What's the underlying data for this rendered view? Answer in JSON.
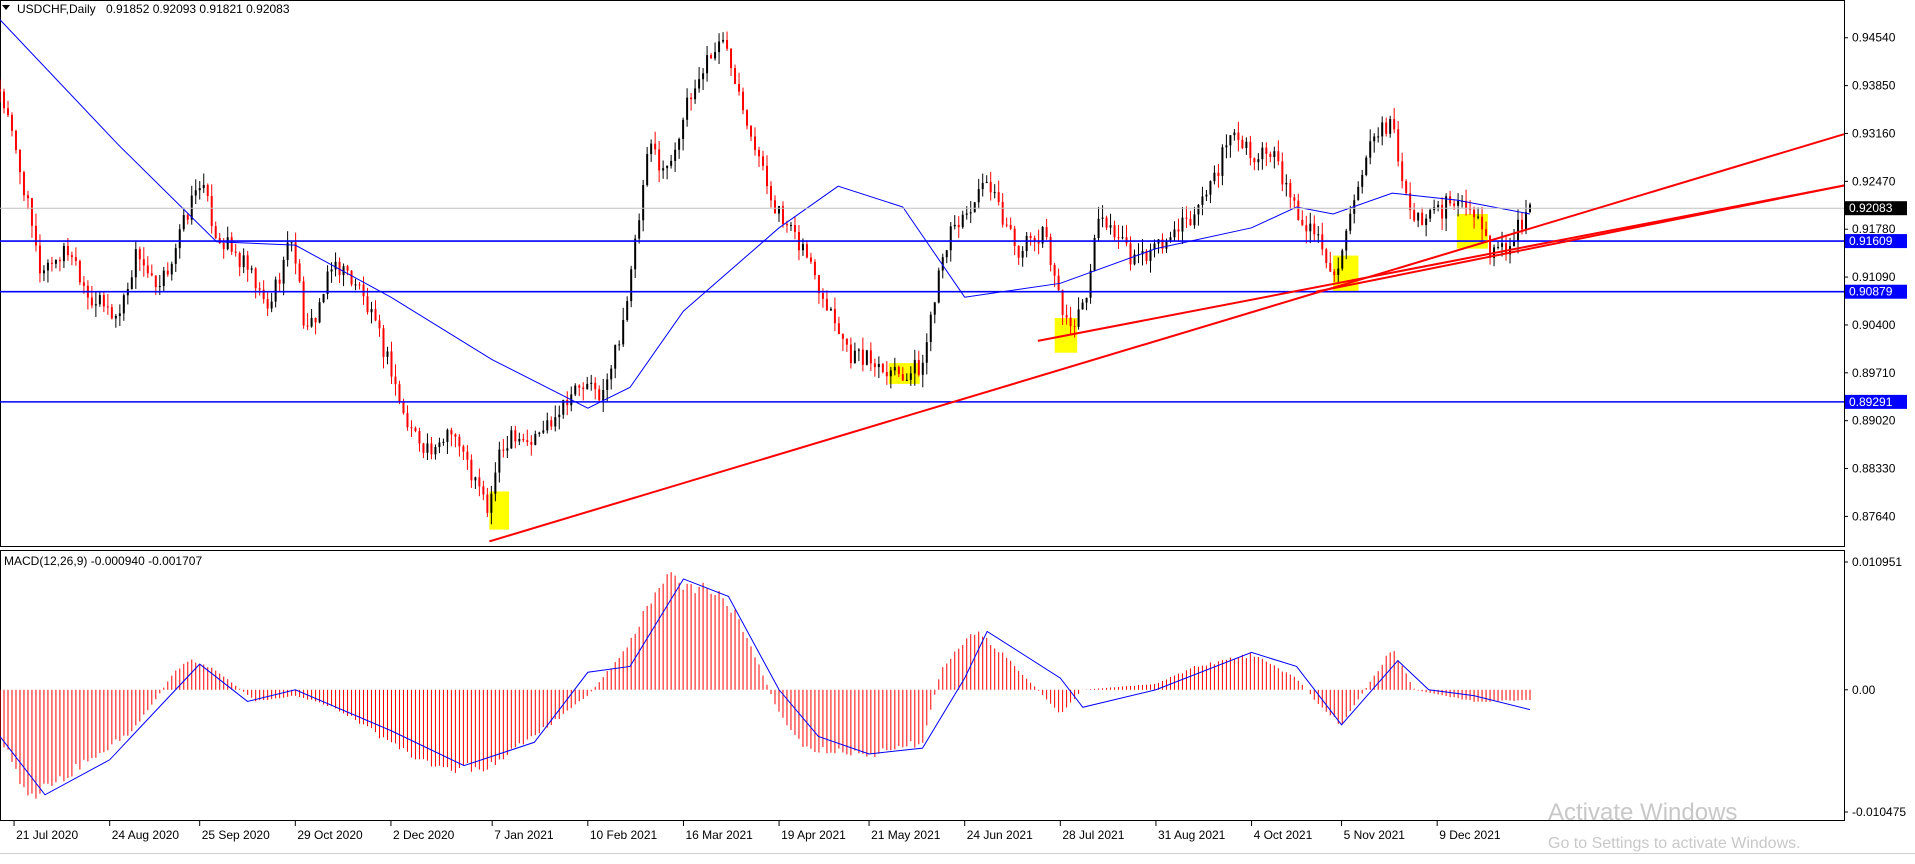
{
  "header": {
    "symbol": "USDCHF,Daily",
    "ohlc": "0.91852 0.92093 0.91821 0.92083"
  },
  "macd_header": {
    "label": "MACD(12,26,9) -0.000940 -0.001707"
  },
  "watermark": {
    "title": "Activate Windows",
    "subtitle": "Go to Settings to activate Windows."
  },
  "colors": {
    "bull": "#000000",
    "bear": "#ff0000",
    "ma": "#0000ff",
    "support": "#0000ff",
    "trend": "#ff0000",
    "highlight": "#ffff00",
    "price_tag": "#000000",
    "level_tag": "#0000ff"
  },
  "chart_data": [
    {
      "type": "candlestick",
      "title": "USDCHF,Daily",
      "current_price": 0.92083,
      "ylim": [
        0.873,
        0.9494
      ],
      "y_ticks": [
        "0.94540",
        "0.93850",
        "0.93160",
        "0.92470",
        "0.91780",
        "0.91090",
        "0.90400",
        "0.89710",
        "0.89020",
        "0.88330",
        "0.87640"
      ],
      "x_tick_labels": [
        "21 Jul 2020",
        "24 Aug 2020",
        "25 Sep 2020",
        "29 Oct 2020",
        "2 Dec 2020",
        "7 Jan 2021",
        "10 Feb 2021",
        "16 Mar 2021",
        "19 Apr 2021",
        "21 May 2021",
        "24 Jun 2021",
        "28 Jul 2021",
        "31 Aug 2021",
        "4 Oct 2021",
        "5 Nov 2021",
        "9 Dec 2021"
      ],
      "candle_count": 384,
      "price_path": [
        [
          "16 Jul 2020",
          0.938
        ],
        [
          "24 Jul 2020",
          0.925
        ],
        [
          "30 Jul 2020",
          0.912
        ],
        [
          "10 Aug 2020",
          0.915
        ],
        [
          "17 Aug 2020",
          0.908
        ],
        [
          "27 Aug 2020",
          0.905
        ],
        [
          "3 Sep 2020",
          0.915
        ],
        [
          "10 Sep 2020",
          0.908
        ],
        [
          "25 Sep 2020",
          0.925
        ],
        [
          "1 Oct 2020",
          0.917
        ],
        [
          "12 Oct 2020",
          0.912
        ],
        [
          "19 Oct 2020",
          0.906
        ],
        [
          "28 Oct 2020",
          0.917
        ],
        [
          "2 Nov 2020",
          0.902
        ],
        [
          "12 Nov 2020",
          0.913
        ],
        [
          "20 Nov 2020",
          0.91
        ],
        [
          "2 Dec 2020",
          0.898
        ],
        [
          "7 Dec 2020",
          0.89
        ],
        [
          "18 Dec 2020",
          0.885
        ],
        [
          "23 Dec 2020",
          0.89
        ],
        [
          "30 Dec 2020",
          0.883
        ],
        [
          "6 Jan 2021",
          0.877
        ],
        [
          "8 Jan 2021",
          0.883
        ],
        [
          "14 Jan 2021",
          0.889
        ],
        [
          "21 Jan 2021",
          0.887
        ],
        [
          "27 Jan 2021",
          0.89
        ],
        [
          "3 Feb 2021",
          0.894
        ],
        [
          "8 Feb 2021",
          0.895
        ],
        [
          "16 Feb 2021",
          0.894
        ],
        [
          "22 Feb 2021",
          0.904
        ],
        [
          "25 Feb 2021",
          0.91
        ],
        [
          "4 Mar 2021",
          0.93
        ],
        [
          "10 Mar 2021",
          0.926
        ],
        [
          "16 Mar 2021",
          0.934
        ],
        [
          "25 Mar 2021",
          0.943
        ],
        [
          "31 Mar 2021",
          0.945
        ],
        [
          "7 Apr 2021",
          0.935
        ],
        [
          "14 Apr 2021",
          0.925
        ],
        [
          "21 Apr 2021",
          0.918
        ],
        [
          "28 Apr 2021",
          0.915
        ],
        [
          "3 May 2021",
          0.91
        ],
        [
          "10 May 2021",
          0.904
        ],
        [
          "14 May 2021",
          0.9
        ],
        [
          "21 May 2021",
          0.899
        ],
        [
          "28 May 2021",
          0.898
        ],
        [
          "3 Jun 2021",
          0.897
        ],
        [
          "9 Jun 2021",
          0.898
        ],
        [
          "16 Jun 2021",
          0.915
        ],
        [
          "24 Jun 2021",
          0.92
        ],
        [
          "2 Jul 2021",
          0.924
        ],
        [
          "7 Jul 2021",
          0.92
        ],
        [
          "13 Jul 2021",
          0.915
        ],
        [
          "23 Jul 2021",
          0.917
        ],
        [
          "30 Jul 2021",
          0.904
        ],
        [
          "5 Aug 2021",
          0.906
        ],
        [
          "11 Aug 2021",
          0.92
        ],
        [
          "17 Aug 2021",
          0.917
        ],
        [
          "23 Aug 2021",
          0.913
        ],
        [
          "31 Aug 2021",
          0.915
        ],
        [
          "7 Sep 2021",
          0.917
        ],
        [
          "14 Sep 2021",
          0.92
        ],
        [
          "20 Sep 2021",
          0.925
        ],
        [
          "28 Sep 2021",
          0.932
        ],
        [
          "4 Oct 2021",
          0.929
        ],
        [
          "12 Oct 2021",
          0.928
        ],
        [
          "20 Oct 2021",
          0.92
        ],
        [
          "27 Oct 2021",
          0.917
        ],
        [
          "2 Nov 2021",
          0.912
        ],
        [
          "5 Nov 2021",
          0.914
        ],
        [
          "15 Nov 2021",
          0.929
        ],
        [
          "23 Nov 2021",
          0.934
        ],
        [
          "26 Nov 2021",
          0.925
        ],
        [
          "1 Dec 2021",
          0.919
        ],
        [
          "7 Dec 2021",
          0.92
        ],
        [
          "16 Dec 2021",
          0.922
        ],
        [
          "22 Dec 2021",
          0.92
        ],
        [
          "28 Dec 2021",
          0.915
        ],
        [
          "3 Jan 2022",
          0.915
        ],
        [
          "6 Jan 2022",
          0.918
        ],
        [
          "11 Jan 2022",
          0.9208
        ]
      ],
      "moving_average_path": [
        [
          "16 Jul 2020",
          0.948
        ],
        [
          "27 Aug 2020",
          0.93
        ],
        [
          "1 Oct 2020",
          0.916
        ],
        [
          "29 Oct 2020",
          0.9155
        ],
        [
          "2 Dec 2020",
          0.908
        ],
        [
          "7 Jan 2021",
          0.899
        ],
        [
          "10 Feb 2021",
          0.892
        ],
        [
          "25 Feb 2021",
          0.895
        ],
        [
          "16 Mar 2021",
          0.906
        ],
        [
          "19 Apr 2021",
          0.918
        ],
        [
          "10 May 2021",
          0.924
        ],
        [
          "2 Jun 2021",
          0.921
        ],
        [
          "24 Jun 2021",
          0.908
        ],
        [
          "28 Jul 2021",
          0.91
        ],
        [
          "31 Aug 2021",
          0.915
        ],
        [
          "4 Oct 2021",
          0.918
        ],
        [
          "20 Oct 2021",
          0.921
        ],
        [
          "2 Nov 2021",
          0.92
        ],
        [
          "23 Nov 2021",
          0.923
        ],
        [
          "16 Dec 2021",
          0.922
        ],
        [
          "11 Jan 2022",
          0.92
        ]
      ],
      "horizontal_levels": [
        {
          "label": "0.91609",
          "value": 0.91609
        },
        {
          "label": "0.90879",
          "value": 0.90879
        },
        {
          "label": "0.89291",
          "value": 0.89291
        }
      ],
      "trendlines": [
        {
          "from": [
            "6 Jan 2021",
            0.8728
          ],
          "to": [
            "right edge",
            0.9315
          ]
        },
        {
          "from": [
            "20 Jul 2021",
            0.9017
          ],
          "to": [
            "right edge",
            0.9241
          ]
        },
        {
          "from": [
            "27 Oct 2021",
            0.9088
          ],
          "to": [
            "right edge",
            0.9241
          ]
        }
      ],
      "highlight_zones": [
        {
          "from": "6 Jan 2021",
          "to": "13 Jan 2021",
          "low": 0.8745,
          "high": 0.88
        },
        {
          "from": "28 May 2021",
          "to": "8 Jun 2021",
          "low": 0.8955,
          "high": 0.8985
        },
        {
          "from": "26 Jul 2021",
          "to": "3 Aug 2021",
          "low": 0.9,
          "high": 0.905
        },
        {
          "from": "2 Nov 2021",
          "to": "11 Nov 2021",
          "low": 0.9088,
          "high": 0.914
        },
        {
          "from": "16 Dec 2021",
          "to": "27 Dec 2021",
          "low": 0.915,
          "high": 0.92
        }
      ]
    },
    {
      "type": "bar",
      "title": "MACD(12,26,9) -0.000940 -0.001707",
      "ylim": [
        -0.010475,
        0.010951
      ],
      "y_ticks": [
        "0.010951",
        "0.00",
        "-0.010475"
      ],
      "macd_path": [
        [
          "16 Jul 2020",
          -0.004
        ],
        [
          "27 Jul 2020",
          -0.0095
        ],
        [
          "31 Jul 2020",
          -0.0085
        ],
        [
          "24 Aug 2020",
          -0.005
        ],
        [
          "3 Sep 2020",
          -0.003
        ],
        [
          "16 Sep 2020",
          0.0015
        ],
        [
          "21 Sep 2020",
          0.0025
        ],
        [
          "29 Sep 2020",
          0.002
        ],
        [
          "15 Oct 2020",
          -0.001
        ],
        [
          "29 Oct 2020",
          -0.0005
        ],
        [
          "12 Nov 2020",
          -0.0015
        ],
        [
          "2 Dec 2020",
          -0.0045
        ],
        [
          "18 Dec 2020",
          -0.007
        ],
        [
          "7 Jan 2021",
          -0.0065
        ],
        [
          "22 Jan 2021",
          -0.004
        ],
        [
          "10 Feb 2021",
          -0.0005
        ],
        [
          "22 Feb 2021",
          0.003
        ],
        [
          "10 Mar 2021",
          0.01
        ],
        [
          "16 Mar 2021",
          0.0085
        ],
        [
          "25 Mar 2021",
          0.009
        ],
        [
          "5 Apr 2021",
          0.006
        ],
        [
          "19 Apr 2021",
          -0.002
        ],
        [
          "28 Apr 2021",
          -0.005
        ],
        [
          "21 May 2021",
          -0.0055
        ],
        [
          "9 Jun 2021",
          -0.0045
        ],
        [
          "16 Jun 2021",
          0.002
        ],
        [
          "28 Jun 2021",
          0.005
        ],
        [
          "8 Jul 2021",
          0.003
        ],
        [
          "28 Jul 2021",
          -0.002
        ],
        [
          "5 Aug 2021",
          0.0
        ],
        [
          "31 Aug 2021",
          0.0005
        ],
        [
          "14 Sep 2021",
          0.002
        ],
        [
          "4 Oct 2021",
          0.003
        ],
        [
          "20 Oct 2021",
          0.001
        ],
        [
          "27 Oct 2021",
          -0.001
        ],
        [
          "5 Nov 2021",
          -0.003
        ],
        [
          "23 Nov 2021",
          0.0035
        ],
        [
          "1 Dec 2021",
          0.0
        ],
        [
          "22 Dec 2021",
          -0.001
        ],
        [
          "11 Jan 2022",
          -0.0009
        ]
      ],
      "signal_path": [
        [
          "16 Jul 2020",
          -0.004
        ],
        [
          "1 Aug 2020",
          -0.009
        ],
        [
          "24 Aug 2020",
          -0.006
        ],
        [
          "25 Sep 2020",
          0.0022
        ],
        [
          "12 Oct 2020",
          -0.001
        ],
        [
          "29 Oct 2020",
          0.0
        ],
        [
          "2 Dec 2020",
          -0.0035
        ],
        [
          "28 Dec 2020",
          -0.0065
        ],
        [
          "22 Jan 2021",
          -0.0045
        ],
        [
          "10 Feb 2021",
          0.0015
        ],
        [
          "25 Feb 2021",
          0.002
        ],
        [
          "16 Mar 2021",
          0.0095
        ],
        [
          "1 Apr 2021",
          0.008
        ],
        [
          "19 Apr 2021",
          0.0
        ],
        [
          "3 May 2021",
          -0.004
        ],
        [
          "21 May 2021",
          -0.0055
        ],
        [
          "9 Jun 2021",
          -0.005
        ],
        [
          "24 Jun 2021",
          0.001
        ],
        [
          "2 Jul 2021",
          0.005
        ],
        [
          "28 Jul 2021",
          0.001
        ],
        [
          "5 Aug 2021",
          -0.0015
        ],
        [
          "31 Aug 2021",
          0.0
        ],
        [
          "4 Oct 2021",
          0.0032
        ],
        [
          "20 Oct 2021",
          0.002
        ],
        [
          "5 Nov 2021",
          -0.003
        ],
        [
          "25 Nov 2021",
          0.0025
        ],
        [
          "6 Dec 2021",
          0.0
        ],
        [
          "22 Dec 2021",
          -0.0005
        ],
        [
          "11 Jan 2022",
          -0.0017
        ]
      ]
    }
  ]
}
